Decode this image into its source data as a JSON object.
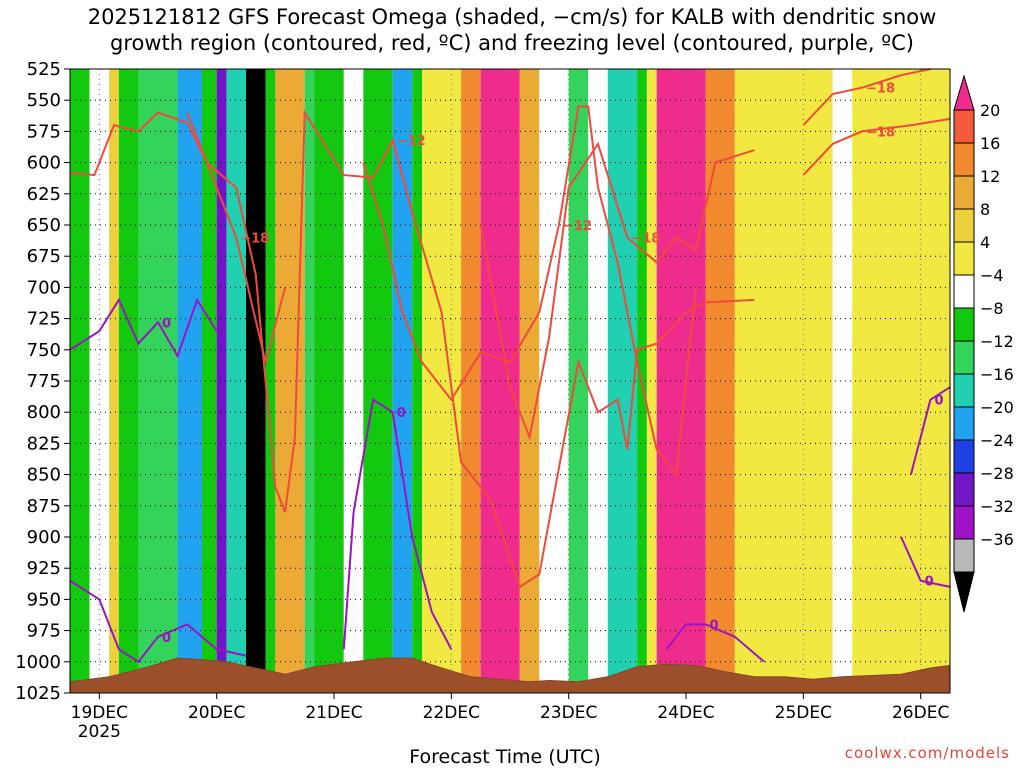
{
  "title_line1": "2025121812 GFS Forecast Omega (shaded, −cm/s) for KALB with dendritic snow",
  "title_line2": "growth region (contoured, red, ºC) and freezing level (contoured, purple, ºC)",
  "credit": "coolwx.com/models",
  "chart_data": {
    "type": "heatmap",
    "xlabel": "Forecast Time (UTC)",
    "ylabel": "",
    "x_tick_labels": [
      "19DEC",
      "20DEC",
      "21DEC",
      "22DEC",
      "23DEC",
      "24DEC",
      "25DEC",
      "26DEC"
    ],
    "x_year_label": "2025",
    "x_range_hours_from_18z_18dec": [
      0,
      180
    ],
    "y_levels_hpa": [
      525,
      550,
      575,
      600,
      625,
      650,
      675,
      700,
      725,
      750,
      775,
      800,
      825,
      850,
      875,
      900,
      925,
      950,
      975,
      1000,
      1025
    ],
    "y_range_hpa": [
      525,
      1025
    ],
    "grid": "dotted",
    "colorbar": {
      "labels": [
        "20",
        "16",
        "12",
        "8",
        "4",
        "−4",
        "−8",
        "−12",
        "−16",
        "−20",
        "−24",
        "−28",
        "−32",
        "−36"
      ],
      "colors": [
        "#f02b8e",
        "#f55a3a",
        "#f1892f",
        "#ebaa35",
        "#ecd03c",
        "#f1e941",
        "#ffffff",
        "#13c90f",
        "#33d35c",
        "#21cfb1",
        "#22a3ef",
        "#1e3fe4",
        "#7016c8",
        "#a111c8",
        "#b9b9b9",
        "#000000"
      ]
    },
    "omega_bands": [
      {
        "start_h": 0,
        "end_h": 4,
        "value": -10
      },
      {
        "start_h": 4,
        "end_h": 8,
        "value": -8
      },
      {
        "start_h": 8,
        "end_h": 10,
        "value": 6
      },
      {
        "start_h": 10,
        "end_h": 14,
        "value": -12
      },
      {
        "start_h": 14,
        "end_h": 18,
        "value": -16
      },
      {
        "start_h": 18,
        "end_h": 22,
        "value": -14
      },
      {
        "start_h": 22,
        "end_h": 27,
        "value": -24
      },
      {
        "start_h": 27,
        "end_h": 30,
        "value": -10
      },
      {
        "start_h": 30,
        "end_h": 32,
        "value": -30
      },
      {
        "start_h": 32,
        "end_h": 36,
        "value": -18
      },
      {
        "start_h": 36,
        "end_h": 40,
        "value": -38
      },
      {
        "start_h": 40,
        "end_h": 42,
        "value": -12
      },
      {
        "start_h": 42,
        "end_h": 48,
        "value": 10
      },
      {
        "start_h": 48,
        "end_h": 50,
        "value": -14
      },
      {
        "start_h": 50,
        "end_h": 56,
        "value": -12
      },
      {
        "start_h": 56,
        "end_h": 60,
        "value": -8
      },
      {
        "start_h": 60,
        "end_h": 66,
        "value": -12
      },
      {
        "start_h": 66,
        "end_h": 70,
        "value": -24
      },
      {
        "start_h": 70,
        "end_h": 72,
        "value": -10
      },
      {
        "start_h": 72,
        "end_h": 80,
        "value": 2
      },
      {
        "start_h": 80,
        "end_h": 84,
        "value": 14
      },
      {
        "start_h": 84,
        "end_h": 92,
        "value": 22
      },
      {
        "start_h": 92,
        "end_h": 96,
        "value": 8
      },
      {
        "start_h": 96,
        "end_h": 102,
        "value": -6
      },
      {
        "start_h": 102,
        "end_h": 106,
        "value": -14
      },
      {
        "start_h": 106,
        "end_h": 110,
        "value": -8
      },
      {
        "start_h": 110,
        "end_h": 116,
        "value": -18
      },
      {
        "start_h": 116,
        "end_h": 118,
        "value": -10
      },
      {
        "start_h": 118,
        "end_h": 120,
        "value": 2
      },
      {
        "start_h": 120,
        "end_h": 130,
        "value": 22
      },
      {
        "start_h": 130,
        "end_h": 136,
        "value": 12
      },
      {
        "start_h": 136,
        "end_h": 156,
        "value": 0
      },
      {
        "start_h": 156,
        "end_h": 160,
        "value": -8
      },
      {
        "start_h": 160,
        "end_h": 180,
        "value": 0
      }
    ],
    "dendritic_contours": [
      {
        "label": "−12",
        "points": [
          [
            0,
            608
          ],
          [
            5,
            610
          ],
          [
            9,
            570
          ],
          [
            14,
            575
          ],
          [
            18,
            560
          ],
          [
            24,
            568
          ],
          [
            28,
            600
          ],
          [
            34,
            620
          ],
          [
            38,
            690
          ],
          [
            42,
            860
          ],
          [
            44,
            880
          ],
          [
            46,
            820
          ],
          [
            48,
            560
          ],
          [
            56,
            610
          ],
          [
            62,
            612
          ],
          [
            66,
            582
          ],
          [
            70,
            640
          ],
          [
            76,
            720
          ],
          [
            80,
            840
          ],
          [
            86,
            870
          ],
          [
            92,
            940
          ],
          [
            96,
            930
          ],
          [
            104,
            760
          ],
          [
            108,
            800
          ],
          [
            112,
            790
          ],
          [
            114,
            830
          ],
          [
            116,
            750
          ],
          [
            120,
            745
          ],
          [
            126,
            720
          ],
          [
            130,
            712
          ],
          [
            140,
            710
          ]
        ]
      },
      {
        "label": "−12",
        "points": [
          [
            60,
            600
          ],
          [
            64,
            650
          ],
          [
            68,
            720
          ],
          [
            72,
            760
          ],
          [
            78,
            790
          ],
          [
            84,
            752
          ],
          [
            90,
            760
          ],
          [
            96,
            720
          ],
          [
            100,
            650
          ],
          [
            104,
            555
          ],
          [
            106,
            555
          ],
          [
            108,
            620
          ],
          [
            112,
            680
          ],
          [
            116,
            760
          ],
          [
            120,
            830
          ],
          [
            124,
            850
          ],
          [
            128,
            700
          ]
        ]
      },
      {
        "label": "−18",
        "points": [
          [
            24,
            560
          ],
          [
            28,
            600
          ],
          [
            34,
            660
          ],
          [
            40,
            760
          ],
          [
            44,
            700
          ]
        ]
      },
      {
        "label": "−18",
        "points": [
          [
            84,
            650
          ],
          [
            90,
            780
          ],
          [
            94,
            820
          ],
          [
            98,
            740
          ],
          [
            102,
            620
          ],
          [
            108,
            585
          ],
          [
            114,
            660
          ],
          [
            120,
            680
          ],
          [
            124,
            660
          ],
          [
            128,
            670
          ],
          [
            132,
            600
          ],
          [
            140,
            590
          ]
        ]
      },
      {
        "label": "−18",
        "points": [
          [
            150,
            610
          ],
          [
            156,
            585
          ],
          [
            162,
            575
          ],
          [
            172,
            570
          ],
          [
            180,
            565
          ]
        ]
      },
      {
        "label": "−18",
        "points": [
          [
            150,
            570
          ],
          [
            156,
            545
          ],
          [
            162,
            540
          ],
          [
            170,
            530
          ],
          [
            176,
            525
          ]
        ]
      }
    ],
    "freezing_contours": [
      {
        "label": "0",
        "points": [
          [
            0,
            750
          ],
          [
            6,
            735
          ],
          [
            10,
            710
          ],
          [
            14,
            745
          ],
          [
            18,
            728
          ],
          [
            22,
            755
          ],
          [
            26,
            710
          ],
          [
            30,
            735
          ]
        ]
      },
      {
        "label": "0",
        "points": [
          [
            0,
            935
          ],
          [
            6,
            950
          ],
          [
            10,
            990
          ],
          [
            14,
            1000
          ],
          [
            18,
            980
          ],
          [
            24,
            970
          ],
          [
            30,
            990
          ],
          [
            36,
            995
          ]
        ]
      },
      {
        "label": "0",
        "points": [
          [
            56,
            990
          ],
          [
            58,
            880
          ],
          [
            62,
            790
          ],
          [
            66,
            800
          ],
          [
            70,
            900
          ],
          [
            74,
            960
          ],
          [
            78,
            990
          ]
        ]
      },
      {
        "label": "0",
        "points": [
          [
            122,
            990
          ],
          [
            126,
            970
          ],
          [
            130,
            970
          ],
          [
            136,
            980
          ],
          [
            142,
            1000
          ]
        ]
      },
      {
        "label": "0",
        "points": [
          [
            172,
            850
          ],
          [
            176,
            790
          ],
          [
            180,
            780
          ]
        ]
      },
      {
        "label": "0",
        "points": [
          [
            170,
            900
          ],
          [
            174,
            935
          ],
          [
            180,
            940
          ]
        ]
      }
    ],
    "terrain": {
      "label": "surface",
      "surface_pressure_hpa": [
        [
          0,
          1016
        ],
        [
          8,
          1012
        ],
        [
          16,
          1004
        ],
        [
          22,
          997
        ],
        [
          26,
          998
        ],
        [
          32,
          1000
        ],
        [
          38,
          1005
        ],
        [
          44,
          1010
        ],
        [
          50,
          1004
        ],
        [
          56,
          1001
        ],
        [
          64,
          997
        ],
        [
          70,
          997
        ],
        [
          76,
          1005
        ],
        [
          82,
          1012
        ],
        [
          88,
          1014
        ],
        [
          94,
          1016
        ],
        [
          98,
          1015
        ],
        [
          104,
          1016
        ],
        [
          110,
          1012
        ],
        [
          116,
          1004
        ],
        [
          122,
          1002
        ],
        [
          128,
          1003
        ],
        [
          134,
          1008
        ],
        [
          140,
          1012
        ],
        [
          146,
          1012
        ],
        [
          152,
          1014
        ],
        [
          158,
          1012
        ],
        [
          164,
          1011
        ],
        [
          170,
          1010
        ],
        [
          176,
          1005
        ],
        [
          180,
          1003
        ]
      ]
    }
  }
}
